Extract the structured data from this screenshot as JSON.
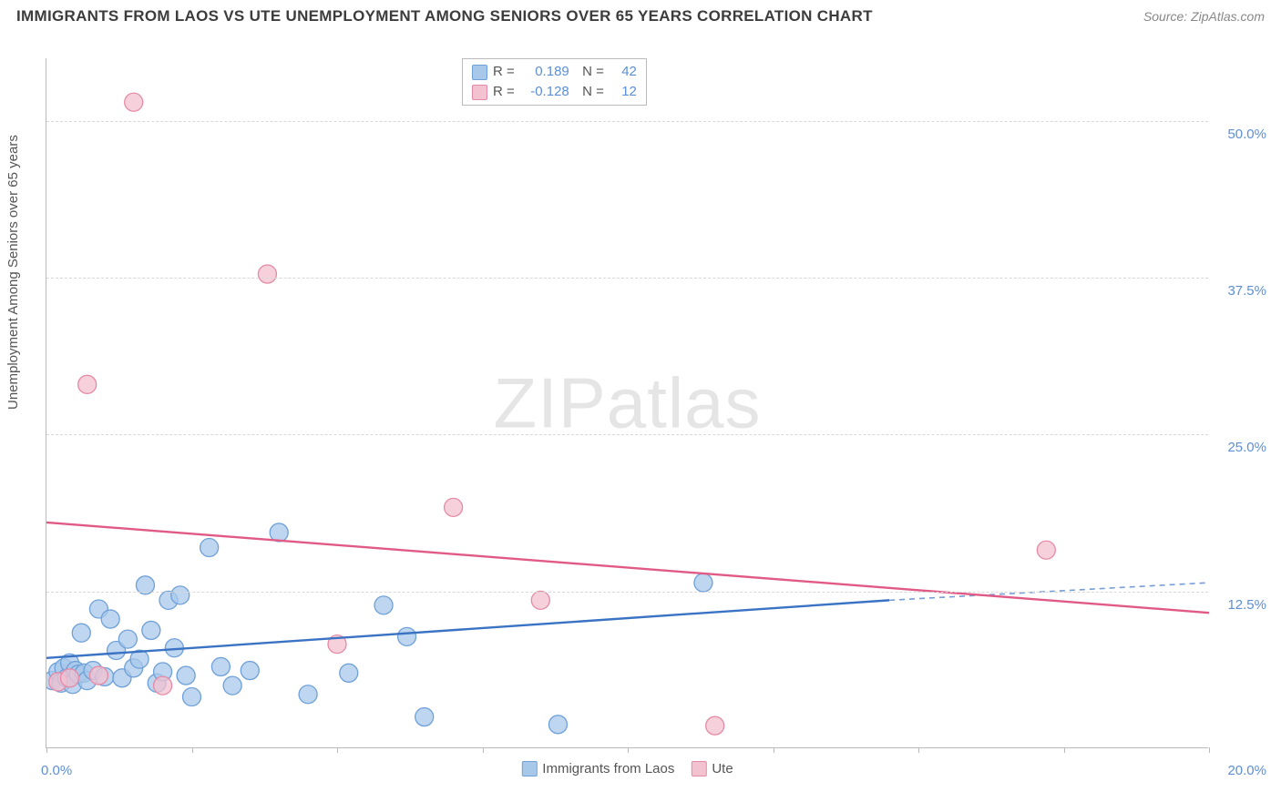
{
  "header": {
    "title": "IMMIGRANTS FROM LAOS VS UTE UNEMPLOYMENT AMONG SENIORS OVER 65 YEARS CORRELATION CHART",
    "source": "Source: ZipAtlas.com"
  },
  "watermark": "ZIPatlas",
  "chart": {
    "type": "scatter",
    "y_axis_label": "Unemployment Among Seniors over 65 years",
    "x_axis_label_left": "0.0%",
    "x_axis_label_right": "20.0%",
    "xlim": [
      0,
      20
    ],
    "ylim": [
      0,
      55
    ],
    "x_ticks": [
      0,
      2.5,
      5,
      7.5,
      10,
      12.5,
      15,
      17.5,
      20
    ],
    "y_grid": [
      {
        "v": 12.5,
        "label": "12.5%"
      },
      {
        "v": 25.0,
        "label": "25.0%"
      },
      {
        "v": 37.5,
        "label": "37.5%"
      },
      {
        "v": 50.0,
        "label": "50.0%"
      }
    ],
    "series": [
      {
        "name": "Immigrants from Laos",
        "fill": "#a8c8ea",
        "stroke": "#6fa0d8",
        "line_color": "#3b73c4",
        "marker_r": 10,
        "R": "0.189",
        "N": "42",
        "trend": {
          "x1": 0,
          "y1": 7.2,
          "x2": 14.5,
          "y2": 11.8,
          "x_dash_to": 20,
          "y_dash_to": 13.2
        },
        "points": [
          [
            0.1,
            5.4
          ],
          [
            0.2,
            6.1
          ],
          [
            0.25,
            5.2
          ],
          [
            0.3,
            6.4
          ],
          [
            0.35,
            5.6
          ],
          [
            0.4,
            6.8
          ],
          [
            0.45,
            5.1
          ],
          [
            0.5,
            6.2
          ],
          [
            0.55,
            5.9
          ],
          [
            0.6,
            9.2
          ],
          [
            0.65,
            6.0
          ],
          [
            0.7,
            5.4
          ],
          [
            0.8,
            6.2
          ],
          [
            0.9,
            11.1
          ],
          [
            1.0,
            5.7
          ],
          [
            1.1,
            10.3
          ],
          [
            1.2,
            7.8
          ],
          [
            1.3,
            5.6
          ],
          [
            1.4,
            8.7
          ],
          [
            1.5,
            6.4
          ],
          [
            1.6,
            7.1
          ],
          [
            1.7,
            13.0
          ],
          [
            1.8,
            9.4
          ],
          [
            1.9,
            5.2
          ],
          [
            2.0,
            6.1
          ],
          [
            2.1,
            11.8
          ],
          [
            2.2,
            8.0
          ],
          [
            2.3,
            12.2
          ],
          [
            2.4,
            5.8
          ],
          [
            2.5,
            4.1
          ],
          [
            2.8,
            16.0
          ],
          [
            3.0,
            6.5
          ],
          [
            3.2,
            5.0
          ],
          [
            3.5,
            6.2
          ],
          [
            4.0,
            17.2
          ],
          [
            4.5,
            4.3
          ],
          [
            5.2,
            6.0
          ],
          [
            5.8,
            11.4
          ],
          [
            6.5,
            2.5
          ],
          [
            6.2,
            8.9
          ],
          [
            8.8,
            1.9
          ],
          [
            11.3,
            13.2
          ]
        ]
      },
      {
        "name": "Ute",
        "fill": "#f3c2d0",
        "stroke": "#e58aa6",
        "line_color": "#e15a86",
        "marker_r": 10,
        "R": "-0.128",
        "N": "12",
        "trend": {
          "x1": 0,
          "y1": 18.0,
          "x2": 20,
          "y2": 10.8
        },
        "points": [
          [
            0.2,
            5.3
          ],
          [
            0.4,
            5.6
          ],
          [
            0.7,
            29.0
          ],
          [
            1.5,
            51.5
          ],
          [
            2.0,
            5.0
          ],
          [
            3.8,
            37.8
          ],
          [
            5.0,
            8.3
          ],
          [
            7.0,
            19.2
          ],
          [
            8.5,
            11.8
          ],
          [
            11.5,
            1.8
          ],
          [
            17.2,
            15.8
          ],
          [
            0.9,
            5.8
          ]
        ]
      }
    ],
    "bottom_legend": [
      {
        "label": "Immigrants from Laos",
        "fill": "#a8c8ea",
        "stroke": "#6fa0d8"
      },
      {
        "label": "Ute",
        "fill": "#f3c2d0",
        "stroke": "#e58aa6"
      }
    ]
  }
}
